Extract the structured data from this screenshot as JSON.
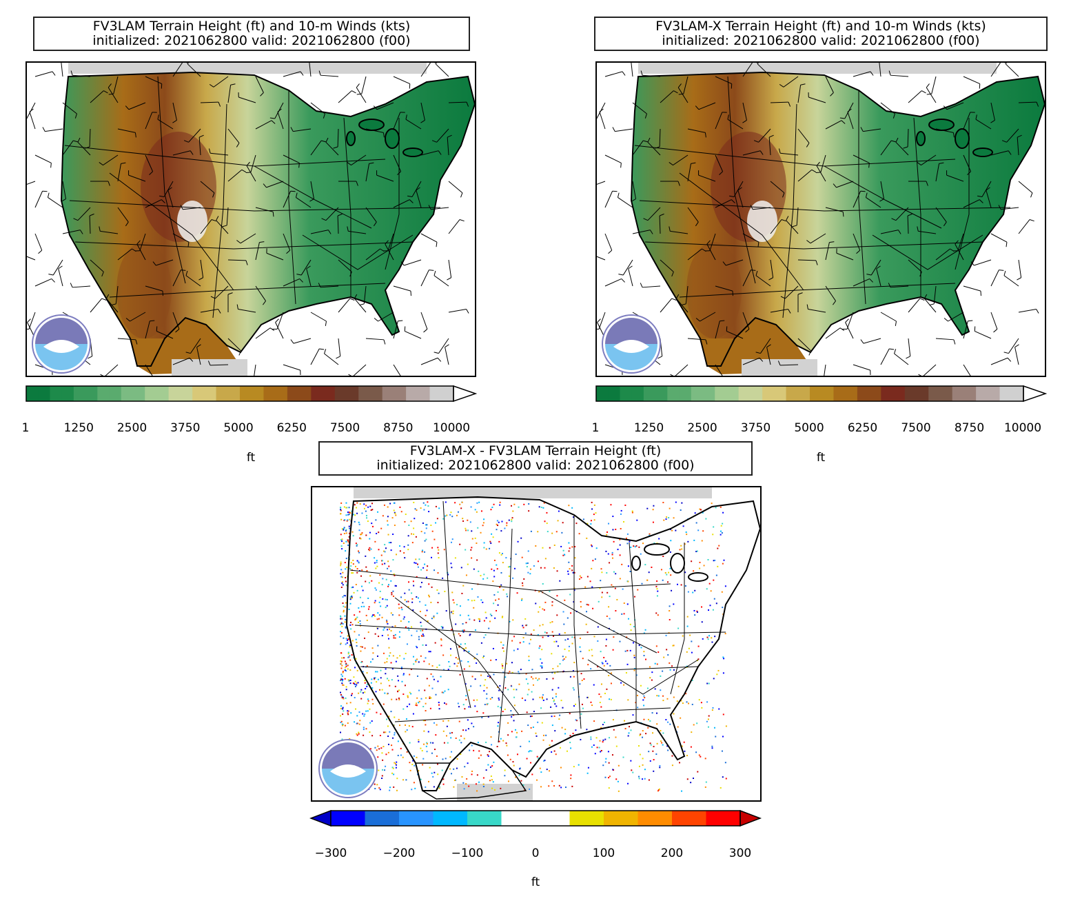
{
  "panels": [
    {
      "id": "fv3lam",
      "title_line1": "FV3LAM Terrain Height (ft) and 10-m Winds (kts)",
      "title_line2": "initialized: 2021062800 valid: 2021062800 (f00)",
      "colorbar": {
        "type": "sequential-extend-max",
        "ticks": [
          "1",
          "1250",
          "2500",
          "3750",
          "5000",
          "6250",
          "7500",
          "8750",
          "10000"
        ],
        "units": "ft"
      }
    },
    {
      "id": "fv3lam-x",
      "title_line1": "FV3LAM-X Terrain Height (ft) and 10-m Winds (kts)",
      "title_line2": "initialized: 2021062800 valid: 2021062800 (f00)",
      "colorbar": {
        "type": "sequential-extend-max",
        "ticks": [
          "1",
          "1250",
          "2500",
          "3750",
          "5000",
          "6250",
          "7500",
          "8750",
          "10000"
        ],
        "units": "ft"
      }
    },
    {
      "id": "difference",
      "title_line1": "FV3LAM-X - FV3LAM Terrain Height (ft)",
      "title_line2": "initialized: 2021062800 valid: 2021062800 (f00)",
      "colorbar": {
        "type": "diverging-extend-both",
        "ticks": [
          "−300",
          "−200",
          "−100",
          "0",
          "100",
          "200",
          "300"
        ],
        "units": "ft"
      }
    }
  ],
  "logo": "noaa-logo",
  "colors": {
    "terrain": [
      "#0b7a3e",
      "#1d8a4a",
      "#3a9a5c",
      "#5aab6e",
      "#7bbb82",
      "#a3cc92",
      "#c8d49a",
      "#d8c878",
      "#c8a84a",
      "#b88a22",
      "#a86c18",
      "#8c4a1a",
      "#7a2a1e",
      "#6a3a2a",
      "#7a5a4a",
      "#9a8078",
      "#b8aaa8",
      "#d0d0d0"
    ],
    "difference": [
      "#0000c8",
      "#0000ff",
      "#1a6ed8",
      "#2894ff",
      "#00b8ff",
      "#38d8c8",
      "#ffffff",
      "#ffffff",
      "#e8e000",
      "#f0b400",
      "#ff8c00",
      "#ff4400",
      "#ff0000",
      "#c80000"
    ]
  }
}
